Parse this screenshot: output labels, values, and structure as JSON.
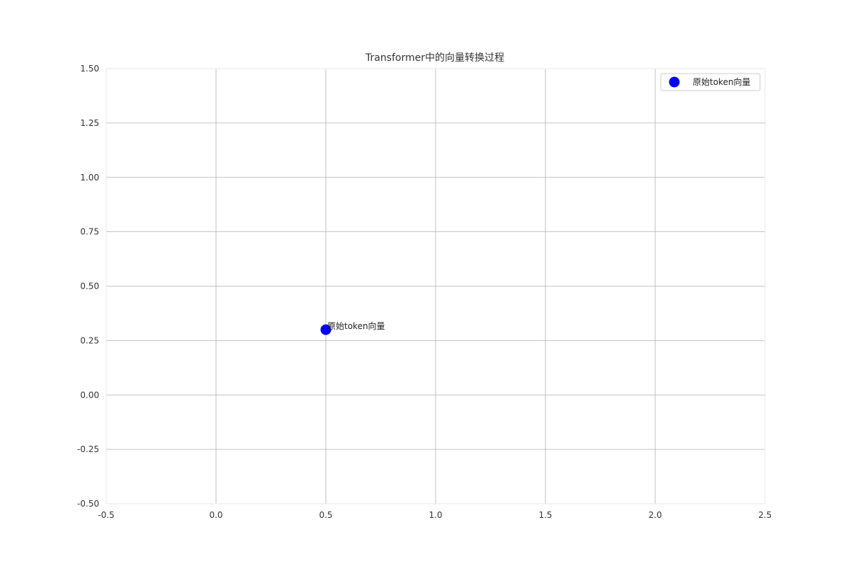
{
  "chart_data": {
    "type": "scatter",
    "title": "Transformer中的向量转换过程",
    "xlabel": "",
    "ylabel": "",
    "xlim": [
      -0.5,
      2.5
    ],
    "ylim": [
      -0.5,
      1.5
    ],
    "xticks": [
      "-0.5",
      "0.0",
      "0.5",
      "1.0",
      "1.5",
      "2.0",
      "2.5"
    ],
    "yticks": [
      "-0.50",
      "-0.25",
      "0.00",
      "0.25",
      "0.50",
      "0.75",
      "1.00",
      "1.25",
      "1.50"
    ],
    "grid": true,
    "legend_position": "top-right",
    "series": [
      {
        "name": "原始token向量",
        "color": "#0000ff",
        "points": [
          {
            "x": 0.5,
            "y": 0.3,
            "label": "原始token向量"
          }
        ]
      }
    ]
  }
}
